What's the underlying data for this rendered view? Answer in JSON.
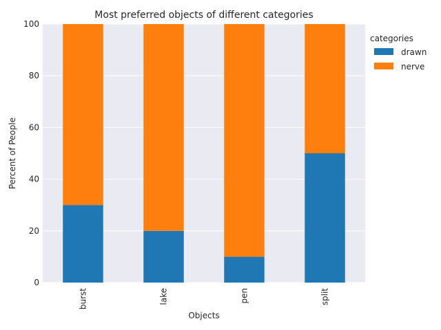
{
  "chart_data": {
    "type": "bar",
    "stacked": true,
    "title": "Most preferred objects of different categories",
    "xlabel": "Objects",
    "ylabel": "Percent of People",
    "categories": [
      "burst",
      "lake",
      "pen",
      "split"
    ],
    "series": [
      {
        "name": "drawn",
        "values": [
          30,
          20,
          10,
          50
        ],
        "color": "#1f77b4"
      },
      {
        "name": "nerve",
        "values": [
          70,
          80,
          90,
          50
        ],
        "color": "#ff7f0e"
      }
    ],
    "ylim": [
      0,
      100
    ],
    "yticks": [
      0,
      20,
      40,
      60,
      80,
      100
    ],
    "grid": true,
    "legend": {
      "title": "categories",
      "placement": "outside-right"
    },
    "colors": {
      "plot_background": "#eaeaf2",
      "grid": "#ffffff"
    }
  }
}
